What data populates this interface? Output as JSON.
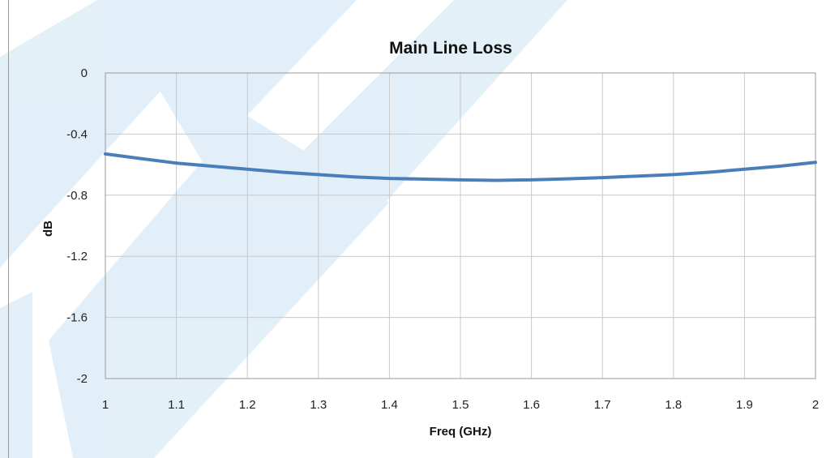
{
  "chart_data": {
    "type": "line",
    "title": "Main Line Loss",
    "xlabel": "Freq (GHz)",
    "ylabel": "dB",
    "xlim": [
      1,
      2
    ],
    "ylim": [
      -2,
      0
    ],
    "x_ticks": [
      1,
      1.1,
      1.2,
      1.3,
      1.4,
      1.5,
      1.6,
      1.7,
      1.8,
      1.9,
      2
    ],
    "x_tick_labels": [
      "1",
      "1.1",
      "1.2",
      "1.3",
      "1.4",
      "1.5",
      "1.6",
      "1.7",
      "1.8",
      "1.9",
      "2"
    ],
    "y_ticks": [
      0,
      -0.4,
      -0.8,
      -1.2,
      -1.6,
      -2
    ],
    "y_tick_labels": [
      "0",
      "-0.4",
      "-0.8",
      "-1.2",
      "-1.6",
      "-2"
    ],
    "grid": true,
    "legend": "none",
    "series": [
      {
        "color": "#4a7ebb",
        "x": [
          1.0,
          1.05,
          1.1,
          1.15,
          1.2,
          1.25,
          1.3,
          1.35,
          1.4,
          1.45,
          1.5,
          1.55,
          1.6,
          1.65,
          1.7,
          1.75,
          1.8,
          1.85,
          1.9,
          1.95,
          2.0
        ],
        "y": [
          -0.53,
          -0.56,
          -0.59,
          -0.61,
          -0.63,
          -0.65,
          -0.665,
          -0.68,
          -0.69,
          -0.695,
          -0.7,
          -0.703,
          -0.7,
          -0.693,
          -0.685,
          -0.675,
          -0.665,
          -0.65,
          -0.63,
          -0.61,
          -0.585
        ]
      }
    ]
  },
  "colors": {
    "series": "#4a7ebb",
    "grid": "#c8c8c8",
    "watermark": "#1f86c8"
  }
}
